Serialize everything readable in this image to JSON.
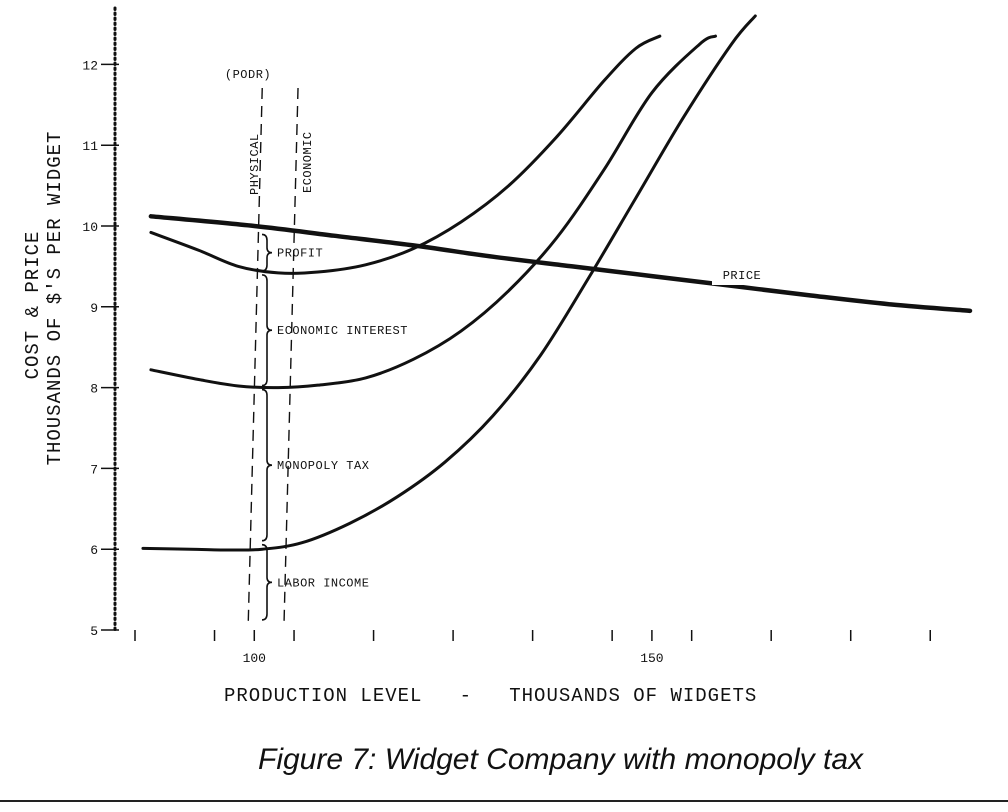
{
  "chart_data": {
    "type": "line",
    "xlabel": "PRODUCTION LEVEL   -   THOUSANDS OF WIDGETS",
    "ylabel_line1": "COST & PRICE",
    "ylabel_line2": "THOUSANDS OF $'S PER WIDGET",
    "xlim": [
      85,
      190
    ],
    "ylim": [
      5,
      12.5
    ],
    "x_ticks": [
      85,
      95,
      100,
      105,
      115,
      125,
      135,
      145,
      150,
      155,
      165,
      175,
      185
    ],
    "x_tick_labels": [
      {
        "x": 100,
        "label": "100"
      },
      {
        "x": 150,
        "label": "150"
      }
    ],
    "y_ticks": [
      5,
      6,
      7,
      8,
      9,
      10,
      11,
      12
    ],
    "y_tick_labels": [
      "5",
      "6",
      "7",
      "8",
      "9",
      "10",
      "11",
      "12"
    ],
    "series": [
      {
        "name": "PRICE",
        "x": [
          87,
          100,
          110,
          120,
          130,
          140,
          150,
          160,
          170,
          180,
          190
        ],
        "y": [
          10.12,
          10.0,
          9.88,
          9.76,
          9.62,
          9.5,
          9.38,
          9.26,
          9.14,
          9.03,
          8.95
        ]
      },
      {
        "name": "",
        "x": [
          86,
          92,
          97,
          101,
          106,
          112,
          118,
          124,
          130,
          136,
          142,
          148,
          154,
          160,
          163
        ],
        "y": [
          6.01,
          6.0,
          5.99,
          6.0,
          6.08,
          6.32,
          6.65,
          7.08,
          7.65,
          8.4,
          9.35,
          10.35,
          11.35,
          12.25,
          12.6
        ]
      },
      {
        "name": "",
        "x": [
          87,
          93,
          98,
          103,
          108,
          114,
          120,
          126,
          132,
          138,
          144,
          150,
          156,
          158
        ],
        "y": [
          8.22,
          8.1,
          8.02,
          8.0,
          8.03,
          8.12,
          8.35,
          8.7,
          9.2,
          9.85,
          10.7,
          11.65,
          12.25,
          12.35
        ]
      },
      {
        "name": "",
        "x": [
          87,
          93,
          98,
          103,
          108,
          114,
          120,
          126,
          132,
          138,
          144,
          148,
          151
        ],
        "y": [
          9.92,
          9.7,
          9.5,
          9.42,
          9.43,
          9.52,
          9.72,
          10.05,
          10.5,
          11.1,
          11.8,
          12.2,
          12.35
        ]
      }
    ],
    "podr_label": "(PODR)",
    "physical": {
      "label": "PHYSICAL",
      "x": 101
    },
    "economic": {
      "label": "ECONOMIC",
      "x": 105.5
    },
    "brackets": [
      {
        "label": "PROFIT",
        "from": 9.42,
        "to": 9.92
      },
      {
        "label": "ECONOMIC INTEREST",
        "from": 8.0,
        "to": 9.42
      },
      {
        "label": "MONOPOLY TAX",
        "from": 6.08,
        "to": 8.0
      },
      {
        "label": "LABOR INCOME",
        "from": 5.1,
        "to": 6.08
      }
    ]
  },
  "caption": "Figure 7: Widget Company with monopoly tax"
}
